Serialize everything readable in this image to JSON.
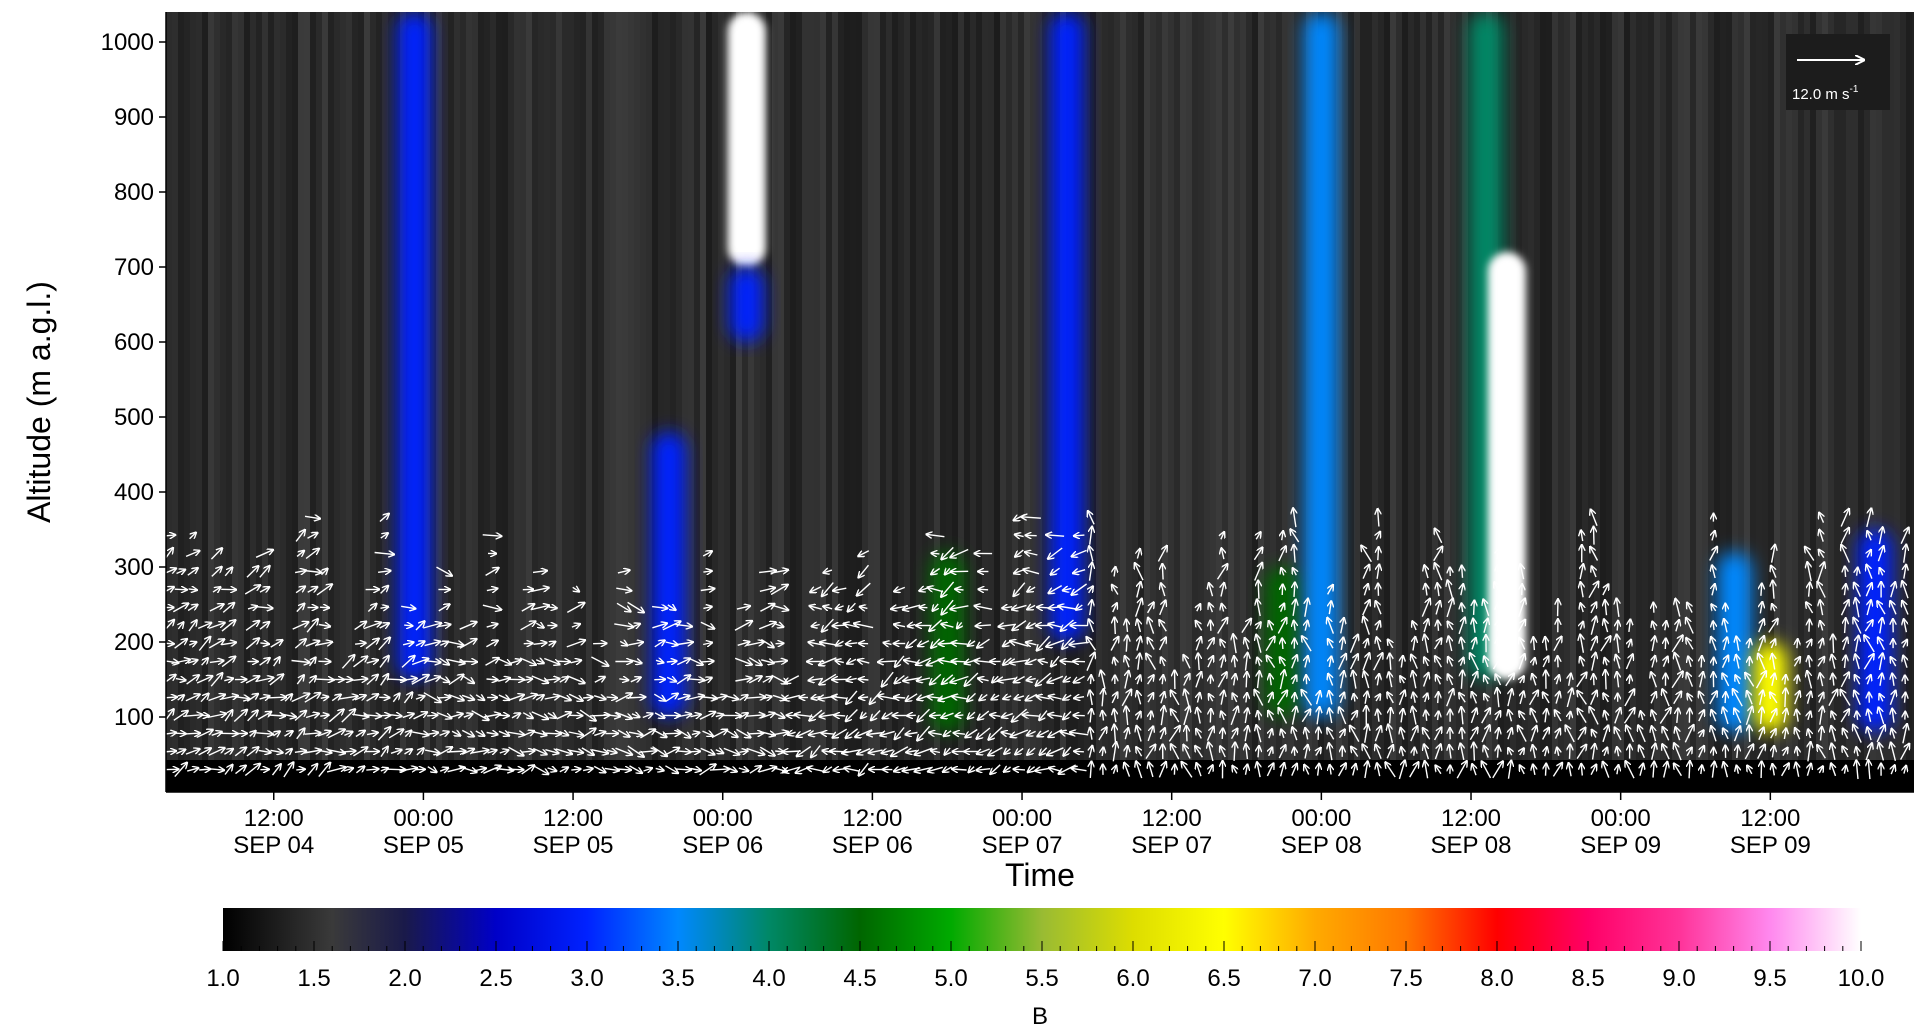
{
  "chart_data": {
    "type": "heatmap",
    "xlabel": "Time",
    "ylabel": "Altitude (m a.g.l.)",
    "colorbar_label": "B",
    "y_ticks": [
      100,
      200,
      300,
      400,
      500,
      600,
      700,
      800,
      900,
      1000
    ],
    "ylim": [
      0,
      1040
    ],
    "x_ticks": [
      {
        "t": 0.5,
        "time": "12:00",
        "date": "SEP 04"
      },
      {
        "t": 1.0,
        "time": "00:00",
        "date": "SEP 05"
      },
      {
        "t": 1.5,
        "time": "12:00",
        "date": "SEP 05"
      },
      {
        "t": 2.0,
        "time": "00:00",
        "date": "SEP 06"
      },
      {
        "t": 2.5,
        "time": "12:00",
        "date": "SEP 06"
      },
      {
        "t": 3.0,
        "time": "00:00",
        "date": "SEP 07"
      },
      {
        "t": 3.5,
        "time": "12:00",
        "date": "SEP 07"
      },
      {
        "t": 4.0,
        "time": "00:00",
        "date": "SEP 08"
      },
      {
        "t": 4.5,
        "time": "12:00",
        "date": "SEP 08"
      },
      {
        "t": 5.0,
        "time": "00:00",
        "date": "SEP 09"
      },
      {
        "t": 5.5,
        "time": "12:00",
        "date": "SEP 09"
      }
    ],
    "xlim": [
      0.14,
      5.98
    ],
    "colorbar_ticks": [
      "1.0",
      "1.5",
      "2.0",
      "2.5",
      "3.0",
      "3.5",
      "4.0",
      "4.5",
      "5.0",
      "5.5",
      "6.0",
      "6.5",
      "7.0",
      "7.5",
      "8.0",
      "8.5",
      "9.0",
      "9.5",
      "10.0"
    ],
    "colorbar_range": [
      1.0,
      10.0
    ],
    "colormap": [
      {
        "v": 1.0,
        "color": "#000000"
      },
      {
        "v": 1.6,
        "color": "#3a3a3a"
      },
      {
        "v": 2.0,
        "color": "#1a1a4a"
      },
      {
        "v": 2.5,
        "color": "#0000c8"
      },
      {
        "v": 3.0,
        "color": "#0022ff"
      },
      {
        "v": 3.5,
        "color": "#0088ff"
      },
      {
        "v": 4.0,
        "color": "#008866"
      },
      {
        "v": 4.5,
        "color": "#006600"
      },
      {
        "v": 5.0,
        "color": "#00aa00"
      },
      {
        "v": 5.5,
        "color": "#99bb33"
      },
      {
        "v": 6.0,
        "color": "#dddd00"
      },
      {
        "v": 6.5,
        "color": "#ffff00"
      },
      {
        "v": 7.0,
        "color": "#ffaa00"
      },
      {
        "v": 7.5,
        "color": "#ff7700"
      },
      {
        "v": 8.0,
        "color": "#ff0000"
      },
      {
        "v": 8.5,
        "color": "#ff0066"
      },
      {
        "v": 9.0,
        "color": "#ff3399"
      },
      {
        "v": 9.5,
        "color": "#ff88ee"
      },
      {
        "v": 10.0,
        "color": "#ffffff"
      }
    ],
    "wind_scale": {
      "value": 12.0,
      "label": "12.0 m s",
      "superscript": "-1"
    },
    "features": [
      {
        "t": 0.97,
        "alt_min": 150,
        "alt_max": 1040,
        "B": 3.0
      },
      {
        "t": 1.82,
        "alt_min": 100,
        "alt_max": 480,
        "B": 3.0
      },
      {
        "t": 2.08,
        "alt_min": 700,
        "alt_max": 1040,
        "B": 9.8
      },
      {
        "t": 2.08,
        "alt_min": 600,
        "alt_max": 700,
        "B": 3.0
      },
      {
        "t": 2.75,
        "alt_min": 80,
        "alt_max": 320,
        "B": 4.2
      },
      {
        "t": 3.15,
        "alt_min": 200,
        "alt_max": 1040,
        "B": 2.8
      },
      {
        "t": 3.87,
        "alt_min": 100,
        "alt_max": 300,
        "B": 4.5
      },
      {
        "t": 4.0,
        "alt_min": 100,
        "alt_max": 1040,
        "B": 3.2
      },
      {
        "t": 4.55,
        "alt_min": 150,
        "alt_max": 1040,
        "B": 4.0
      },
      {
        "t": 4.62,
        "alt_min": 150,
        "alt_max": 720,
        "B": 9.8
      },
      {
        "t": 5.38,
        "alt_min": 80,
        "alt_max": 320,
        "B": 3.5
      },
      {
        "t": 5.5,
        "alt_min": 80,
        "alt_max": 200,
        "B": 6.5
      },
      {
        "t": 5.85,
        "alt_min": 80,
        "alt_max": 350,
        "B": 3.0
      }
    ]
  }
}
